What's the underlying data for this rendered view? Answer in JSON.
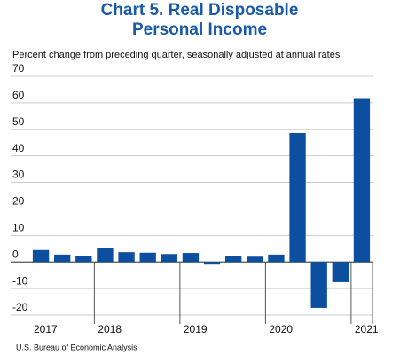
{
  "chart_data": {
    "type": "bar",
    "title": [
      "Chart 5. Real Disposable",
      "Personal Income"
    ],
    "subtitle": "Percent change from preceding quarter, seasonally adjusted at annual rates",
    "source": "U.S. Bureau of Economic Analysis",
    "categories": [
      "2017",
      null,
      null,
      "2018",
      null,
      null,
      null,
      "2019",
      null,
      null,
      null,
      "2020",
      null,
      null,
      null,
      "2021"
    ],
    "values": [
      4.5,
      2.8,
      2.3,
      5.3,
      3.7,
      3.5,
      3.0,
      3.4,
      -1.0,
      2.2,
      2.0,
      2.8,
      48.6,
      -17.3,
      -7.6,
      61.8
    ],
    "color": "#0b4f9e",
    "ylim": [
      -20,
      70
    ],
    "yticks": [
      -20,
      -10,
      0,
      10,
      20,
      30,
      40,
      50,
      60,
      70
    ],
    "grid": true
  }
}
